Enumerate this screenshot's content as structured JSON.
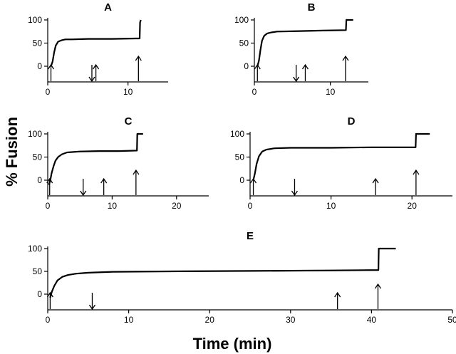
{
  "figure": {
    "ylabel": "% Fusion",
    "xlabel": "Time (min)"
  },
  "chart_data": [
    {
      "type": "line",
      "title": "A",
      "xlim": [
        0,
        15
      ],
      "ylim": [
        -30,
        110
      ],
      "xticks": [
        0,
        10
      ],
      "yticks": [
        0,
        50,
        100
      ],
      "series": [
        {
          "x": [
            0.4,
            0.6,
            0.8,
            1.0,
            1.3,
            1.7,
            2.2,
            3.0,
            5.0,
            8.0,
            11.0,
            11.45,
            11.5,
            11.6
          ],
          "y": [
            0,
            10,
            30,
            45,
            53,
            56,
            58,
            58,
            59,
            59,
            60,
            60,
            95,
            100
          ]
        }
      ],
      "arrows": [
        {
          "x": 0.4,
          "dir": "up"
        },
        {
          "x": 5.5,
          "dir": "down"
        },
        {
          "x": 6.0,
          "dir": "up"
        },
        {
          "x": 11.3,
          "dir": "up"
        }
      ]
    },
    {
      "type": "line",
      "title": "B",
      "xlim": [
        0,
        15
      ],
      "ylim": [
        -30,
        110
      ],
      "xticks": [
        0,
        10
      ],
      "yticks": [
        0,
        50,
        100
      ],
      "series": [
        {
          "x": [
            0.4,
            0.6,
            0.8,
            1.0,
            1.3,
            1.7,
            2.2,
            3.0,
            6.0,
            9.0,
            12.0,
            12.05,
            12.1,
            13.0
          ],
          "y": [
            0,
            12,
            35,
            55,
            66,
            71,
            73,
            75,
            76,
            77,
            78,
            78,
            100,
            100
          ]
        }
      ],
      "arrows": [
        {
          "x": 0.4,
          "dir": "up"
        },
        {
          "x": 5.5,
          "dir": "down"
        },
        {
          "x": 6.7,
          "dir": "up"
        },
        {
          "x": 12.0,
          "dir": "up"
        }
      ]
    },
    {
      "type": "line",
      "title": "C",
      "xlim": [
        0,
        25
      ],
      "ylim": [
        -30,
        110
      ],
      "xticks": [
        0,
        10,
        20
      ],
      "yticks": [
        0,
        50,
        100
      ],
      "series": [
        {
          "x": [
            0.2,
            0.4,
            0.6,
            0.9,
            1.2,
            1.6,
            2.2,
            3.0,
            5.0,
            8.0,
            11.0,
            13.8,
            13.85,
            13.9,
            14.8
          ],
          "y": [
            -10,
            0,
            15,
            30,
            42,
            50,
            56,
            60,
            62,
            63,
            63,
            64,
            64,
            100,
            100
          ]
        }
      ],
      "arrows": [
        {
          "x": 0.3,
          "dir": "up"
        },
        {
          "x": 5.5,
          "dir": "down"
        },
        {
          "x": 8.7,
          "dir": "up"
        },
        {
          "x": 13.7,
          "dir": "up"
        }
      ]
    },
    {
      "type": "line",
      "title": "D",
      "xlim": [
        0,
        25
      ],
      "ylim": [
        -30,
        110
      ],
      "xticks": [
        0,
        10,
        20
      ],
      "yticks": [
        0,
        50,
        100
      ],
      "series": [
        {
          "x": [
            0.4,
            0.6,
            0.8,
            1.1,
            1.5,
            2.0,
            3.0,
            5.0,
            10.0,
            15.0,
            20.4,
            20.45,
            20.5,
            22.2
          ],
          "y": [
            0,
            15,
            35,
            52,
            62,
            66,
            69,
            70,
            70,
            71,
            71,
            71,
            100,
            100
          ]
        }
      ],
      "arrows": [
        {
          "x": 0.4,
          "dir": "up"
        },
        {
          "x": 5.5,
          "dir": "down"
        },
        {
          "x": 15.5,
          "dir": "up"
        },
        {
          "x": 20.5,
          "dir": "up"
        }
      ]
    },
    {
      "type": "line",
      "title": "E",
      "xlim": [
        0,
        50
      ],
      "ylim": [
        -30,
        110
      ],
      "xticks": [
        0,
        10,
        20,
        30,
        40,
        50
      ],
      "yticks": [
        0,
        50,
        100
      ],
      "series": [
        {
          "x": [
            0.3,
            0.5,
            0.8,
            1.2,
            1.8,
            2.5,
            3.5,
            5.0,
            8.0,
            15.0,
            25.0,
            35.0,
            40.8,
            40.85,
            40.9,
            43.0
          ],
          "y": [
            -8,
            5,
            18,
            30,
            38,
            42,
            45,
            47,
            49,
            50,
            51,
            52,
            53,
            53,
            100,
            100
          ]
        }
      ],
      "arrows": [
        {
          "x": 0.3,
          "dir": "up"
        },
        {
          "x": 5.5,
          "dir": "down"
        },
        {
          "x": 35.8,
          "dir": "up"
        },
        {
          "x": 40.8,
          "dir": "up"
        }
      ]
    }
  ]
}
